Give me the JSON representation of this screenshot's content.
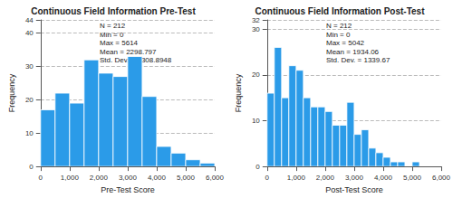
{
  "chart_data": [
    {
      "type": "histogram",
      "title": "Continuous Field Information Pre-Test",
      "x_label": "Pre-Test Score",
      "y_label": "Frequency",
      "bins": [
        0,
        500,
        1000,
        1500,
        2000,
        2500,
        3000,
        3500,
        4000,
        4500,
        5000,
        5500,
        6000
      ],
      "counts": [
        17,
        22,
        19,
        32,
        28,
        27,
        33,
        21,
        6,
        4,
        2,
        1
      ],
      "color": "#2b9be8",
      "xlim": [
        0,
        6000
      ],
      "xticks": [
        0,
        1000,
        2000,
        3000,
        4000,
        5000,
        6000
      ],
      "ylim": [
        0,
        44
      ],
      "yticks": [
        0,
        10,
        20,
        30,
        40
      ],
      "grid": true,
      "annotation": [
        "N = 212",
        "Min = 0",
        "Max = 5614",
        "Mean = 2298.797",
        "Std. Dev. = 1308.8948"
      ]
    },
    {
      "type": "histogram",
      "title": "Continuous Field Information Post-Test",
      "x_label": "Post-Test Score",
      "y_label": "Frequency",
      "bins": [
        0,
        250,
        500,
        750,
        1000,
        1250,
        1500,
        1750,
        2000,
        2250,
        2500,
        2750,
        3000,
        3250,
        3500,
        3750,
        4000,
        4250,
        4500,
        4750,
        5000,
        5250
      ],
      "counts": [
        16,
        26,
        15,
        22,
        21,
        15,
        13,
        13,
        12,
        9,
        9,
        14,
        7,
        8,
        4,
        3,
        2,
        1,
        1,
        0,
        1
      ],
      "color": "#2b9be8",
      "xlim": [
        0,
        6000
      ],
      "xticks": [
        0,
        1000,
        2000,
        3000,
        4000,
        5000,
        6000
      ],
      "ylim": [
        0,
        32
      ],
      "yticks": [
        0,
        10,
        20,
        30
      ],
      "grid": true,
      "annotation": [
        "N = 212",
        "Min = 0",
        "Max = 5042",
        "Mean = 1934.06",
        "Std. Dev. = 1339.67"
      ]
    }
  ]
}
